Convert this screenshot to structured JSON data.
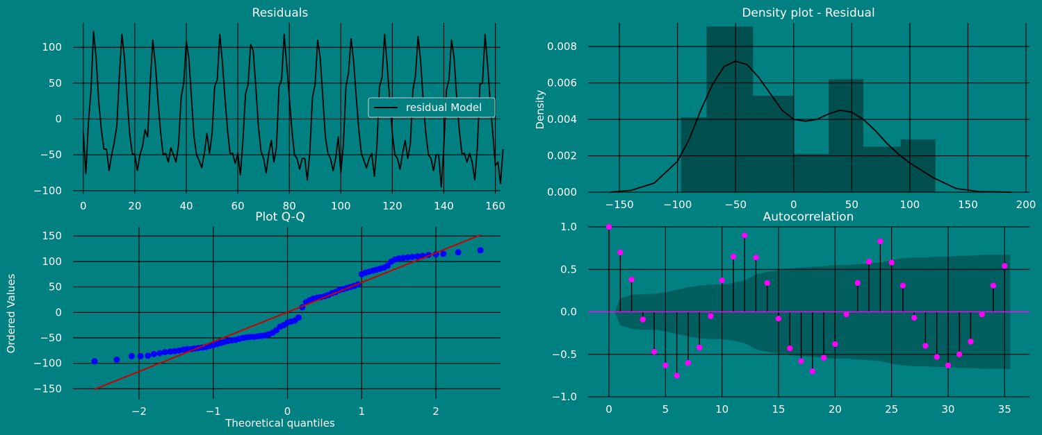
{
  "background": "#008080",
  "chart_data": [
    {
      "id": "residuals",
      "type": "line",
      "title": "Residuals",
      "xlabel": "",
      "ylabel": "",
      "xlim": [
        -4,
        162
      ],
      "ylim": [
        -104,
        134
      ],
      "xticks": [
        0,
        20,
        40,
        60,
        80,
        100,
        120,
        140,
        160
      ],
      "yticks": [
        -100,
        -50,
        0,
        50,
        100
      ],
      "grid": true,
      "legend": {
        "position": "right",
        "entries": [
          "residual Model"
        ]
      },
      "series": [
        {
          "name": "residual Model",
          "color": "#000000",
          "y": [
            -18,
            -76,
            -5,
            40,
            122,
            85,
            25,
            -15,
            -42,
            -42,
            -72,
            -50,
            -33,
            -10,
            60,
            118,
            85,
            30,
            -20,
            -48,
            -50,
            -72,
            -50,
            -38,
            -15,
            -25,
            50,
            110,
            75,
            25,
            -18,
            -50,
            -48,
            -60,
            -40,
            -50,
            -60,
            -35,
            30,
            50,
            108,
            85,
            30,
            -25,
            -50,
            -58,
            -68,
            -48,
            -20,
            -48,
            -20,
            45,
            55,
            118,
            80,
            30,
            -15,
            -48,
            -48,
            -62,
            -48,
            -78,
            -30,
            35,
            48,
            104,
            95,
            45,
            -10,
            -45,
            -55,
            -75,
            -48,
            -30,
            -60,
            -40,
            45,
            55,
            118,
            75,
            30,
            -15,
            -50,
            -55,
            -70,
            -55,
            -55,
            -85,
            -45,
            30,
            48,
            110,
            85,
            30,
            -25,
            -48,
            -55,
            -72,
            -55,
            -25,
            -75,
            -35,
            45,
            65,
            112,
            80,
            30,
            -15,
            -48,
            -58,
            -68,
            -55,
            -48,
            -80,
            -38,
            45,
            58,
            118,
            75,
            25,
            -20,
            -50,
            -55,
            -70,
            -48,
            -30,
            -55,
            -35,
            40,
            60,
            115,
            80,
            25,
            -20,
            -50,
            -55,
            -72,
            -50,
            -50,
            -95,
            -38,
            40,
            55,
            110,
            85,
            30,
            -15,
            -48,
            -48,
            -60,
            -48,
            -60,
            -85,
            -40,
            48,
            50,
            118,
            75,
            25,
            -20,
            -65,
            -60,
            -90,
            -42
          ]
        }
      ]
    },
    {
      "id": "density",
      "type": "area",
      "title": "Density plot - Residual",
      "xlabel": "",
      "ylabel": "Density",
      "xlim": [
        -177,
        203
      ],
      "ylim": [
        0,
        0.0093
      ],
      "xticks": [
        -150,
        -100,
        -50,
        0,
        50,
        100,
        150,
        200
      ],
      "yticks": [
        0.0,
        0.002,
        0.004,
        0.006,
        0.008
      ],
      "ytick_labels": [
        "0.000",
        "0.002",
        "0.004",
        "0.006",
        "0.008"
      ],
      "grid": true,
      "histogram": {
        "bin_edges": [
          -97,
          -75,
          -35,
          0,
          30,
          60,
          92,
          122
        ],
        "densities": [
          0.0041,
          0.0091,
          0.0053,
          0.0021,
          0.0062,
          0.0025,
          0.0029
        ],
        "color": "#004848"
      },
      "kde": {
        "color": "#000000",
        "x": [
          -158,
          -140,
          -120,
          -100,
          -90,
          -80,
          -70,
          -60,
          -50,
          -40,
          -30,
          -20,
          -10,
          0,
          10,
          20,
          30,
          40,
          50,
          60,
          70,
          80,
          90,
          100,
          110,
          120,
          130,
          140,
          160,
          187
        ],
        "y": [
          0.0,
          0.0001,
          0.0005,
          0.0017,
          0.0029,
          0.0045,
          0.0059,
          0.0069,
          0.0072,
          0.007,
          0.0063,
          0.0054,
          0.0045,
          0.004,
          0.0039,
          0.004,
          0.0043,
          0.0045,
          0.0044,
          0.004,
          0.0034,
          0.0027,
          0.0021,
          0.0016,
          0.0012,
          0.0008,
          0.0005,
          0.0002,
          3e-05,
          0.0
        ]
      }
    },
    {
      "id": "qq",
      "type": "scatter",
      "title": "Plot Q-Q",
      "xlabel": "Theoretical quantiles",
      "ylabel": "Ordered Values",
      "xlim": [
        -2.89,
        2.87
      ],
      "ylim": [
        -170,
        168
      ],
      "xticks": [
        -2,
        -1,
        0,
        1,
        2
      ],
      "yticks": [
        -150,
        -100,
        -50,
        0,
        50,
        100,
        150
      ],
      "grid": true,
      "points_color": "#0000FF",
      "points": [
        [
          -2.6,
          -96
        ],
        [
          -2.3,
          -93
        ],
        [
          -2.1,
          -86
        ],
        [
          -1.98,
          -86
        ],
        [
          -1.88,
          -85
        ],
        [
          -1.8,
          -82
        ],
        [
          -1.72,
          -80
        ],
        [
          -1.65,
          -78
        ],
        [
          -1.58,
          -77
        ],
        [
          -1.52,
          -76
        ],
        [
          -1.46,
          -75
        ],
        [
          -1.4,
          -73
        ],
        [
          -1.35,
          -72
        ],
        [
          -1.3,
          -72
        ],
        [
          -1.25,
          -71
        ],
        [
          -1.2,
          -70
        ],
        [
          -1.15,
          -69
        ],
        [
          -1.1,
          -68
        ],
        [
          -1.05,
          -66
        ],
        [
          -1.0,
          -64
        ],
        [
          -0.95,
          -62
        ],
        [
          -0.9,
          -60
        ],
        [
          -0.85,
          -58
        ],
        [
          -0.8,
          -56
        ],
        [
          -0.75,
          -55
        ],
        [
          -0.7,
          -54
        ],
        [
          -0.65,
          -52
        ],
        [
          -0.6,
          -50
        ],
        [
          -0.55,
          -49
        ],
        [
          -0.5,
          -48
        ],
        [
          -0.45,
          -48
        ],
        [
          -0.4,
          -47
        ],
        [
          -0.35,
          -46
        ],
        [
          -0.3,
          -45
        ],
        [
          -0.25,
          -43
        ],
        [
          -0.2,
          -40
        ],
        [
          -0.15,
          -35
        ],
        [
          -0.1,
          -28
        ],
        [
          -0.05,
          -25
        ],
        [
          0.0,
          -20
        ],
        [
          0.05,
          -18
        ],
        [
          0.1,
          -16
        ],
        [
          0.15,
          -10
        ],
        [
          0.2,
          10
        ],
        [
          0.25,
          20
        ],
        [
          0.3,
          24
        ],
        [
          0.35,
          27
        ],
        [
          0.4,
          29
        ],
        [
          0.45,
          30
        ],
        [
          0.5,
          32
        ],
        [
          0.55,
          34
        ],
        [
          0.6,
          38
        ],
        [
          0.65,
          40
        ],
        [
          0.7,
          44
        ],
        [
          0.75,
          46
        ],
        [
          0.8,
          48
        ],
        [
          0.85,
          50
        ],
        [
          0.9,
          52
        ],
        [
          0.95,
          55
        ],
        [
          1.0,
          75
        ],
        [
          1.05,
          78
        ],
        [
          1.1,
          80
        ],
        [
          1.15,
          82
        ],
        [
          1.2,
          84
        ],
        [
          1.25,
          86
        ],
        [
          1.3,
          88
        ],
        [
          1.35,
          92
        ],
        [
          1.4,
          100
        ],
        [
          1.45,
          104
        ],
        [
          1.5,
          106
        ],
        [
          1.56,
          107
        ],
        [
          1.62,
          108
        ],
        [
          1.68,
          109
        ],
        [
          1.75,
          110
        ],
        [
          1.82,
          111
        ],
        [
          1.9,
          113
        ],
        [
          2.0,
          114
        ],
        [
          2.1,
          115
        ],
        [
          2.3,
          118
        ],
        [
          2.6,
          122
        ]
      ],
      "fit_line": {
        "color": "#CC0000",
        "points": [
          [
            -2.6,
            -151
          ],
          [
            2.6,
            152
          ]
        ]
      }
    },
    {
      "id": "acf",
      "type": "scatter",
      "title": "Autocorrelation",
      "xlabel": "",
      "ylabel": "",
      "xlim": [
        -1.85,
        37.2
      ],
      "ylim": [
        -1.0,
        1.0
      ],
      "xticks": [
        0,
        5,
        10,
        15,
        20,
        25,
        30,
        35
      ],
      "yticks": [
        -1.0,
        -0.5,
        0.0,
        0.5,
        1.0
      ],
      "ytick_labels": [
        "−1.0",
        "−0.5",
        "0.0",
        "0.5",
        "1.0"
      ],
      "grid": true,
      "marker_color": "#FF00FF",
      "zero_line_color": "#FF00FF",
      "band_color": "#005A5A",
      "lags": [
        0,
        1,
        2,
        3,
        4,
        5,
        6,
        7,
        8,
        9,
        10,
        11,
        12,
        13,
        14,
        15,
        16,
        17,
        18,
        19,
        20,
        21,
        22,
        23,
        24,
        25,
        26,
        27,
        28,
        29,
        30,
        31,
        32,
        33,
        34,
        35
      ],
      "values": [
        1.0,
        0.7,
        0.38,
        -0.09,
        -0.47,
        -0.63,
        -0.75,
        -0.6,
        -0.42,
        -0.05,
        0.37,
        0.65,
        0.9,
        0.64,
        0.34,
        -0.08,
        -0.43,
        -0.58,
        -0.7,
        -0.54,
        -0.38,
        -0.03,
        0.34,
        0.59,
        0.83,
        0.58,
        0.31,
        -0.07,
        -0.4,
        -0.53,
        -0.63,
        -0.5,
        -0.35,
        -0.03,
        0.31,
        0.54
      ],
      "confidence_band": [
        0.0,
        0.16,
        0.2,
        0.21,
        0.21,
        0.23,
        0.26,
        0.29,
        0.31,
        0.32,
        0.32,
        0.34,
        0.37,
        0.44,
        0.47,
        0.49,
        0.51,
        0.52,
        0.53,
        0.54,
        0.55,
        0.55,
        0.56,
        0.57,
        0.58,
        0.61,
        0.63,
        0.64,
        0.64,
        0.65,
        0.65,
        0.66,
        0.66,
        0.67,
        0.67,
        0.67
      ]
    }
  ]
}
